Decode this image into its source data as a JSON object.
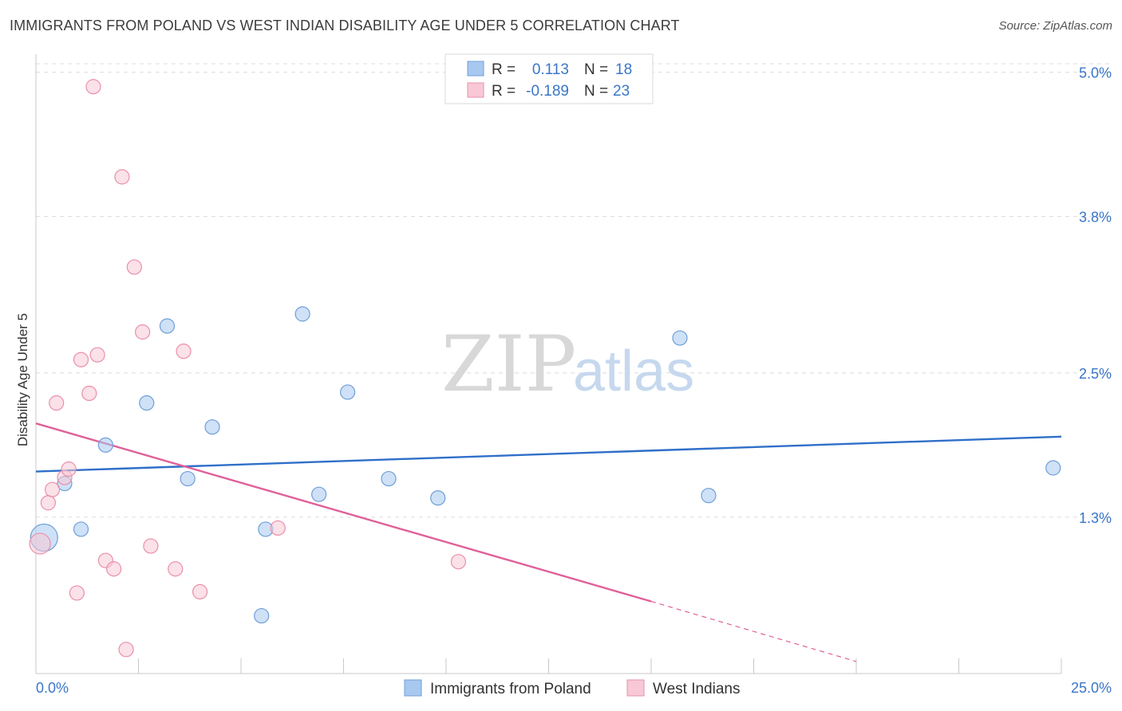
{
  "title": "IMMIGRANTS FROM POLAND VS WEST INDIAN DISABILITY AGE UNDER 5 CORRELATION CHART",
  "source": "Source: ZipAtlas.com",
  "watermark": {
    "zip": "ZIP",
    "atlas": "atlas"
  },
  "chart_data": {
    "type": "scatter",
    "title": "IMMIGRANTS FROM POLAND VS WEST INDIAN DISABILITY AGE UNDER 5 CORRELATION CHART",
    "xlabel": "",
    "ylabel": "Disability Age Under 5",
    "xlim": [
      0,
      25
    ],
    "ylim": [
      0,
      5.15
    ],
    "x_tick_labels": [
      "0.0%",
      "25.0%"
    ],
    "y_ticks": [
      1.3,
      2.5,
      3.8,
      5.0
    ],
    "y_tick_labels": [
      "1.3%",
      "2.5%",
      "3.8%",
      "5.0%"
    ],
    "grid": true,
    "legend": [
      {
        "r_label": "R =",
        "r_value": "0.113",
        "n_label": "N =",
        "n_value": "18"
      },
      {
        "r_label": "R =",
        "r_value": "-0.189",
        "n_label": "N =",
        "n_value": "23"
      }
    ],
    "series": [
      {
        "name": "Immigrants from Poland",
        "color": "#a8c8f0",
        "edge": "#6f9fd8",
        "line_color": "#2f6fc9",
        "trend": [
          [
            0,
            1.68
          ],
          [
            25,
            1.97
          ]
        ],
        "points": [
          {
            "x": 0.2,
            "y": 1.13,
            "s": 17
          },
          {
            "x": 0.7,
            "y": 1.58,
            "s": 9
          },
          {
            "x": 1.1,
            "y": 1.2,
            "s": 9
          },
          {
            "x": 1.7,
            "y": 1.9,
            "s": 9
          },
          {
            "x": 2.7,
            "y": 2.25,
            "s": 9
          },
          {
            "x": 3.2,
            "y": 2.89,
            "s": 9
          },
          {
            "x": 3.7,
            "y": 1.62,
            "s": 9
          },
          {
            "x": 4.3,
            "y": 2.05,
            "s": 9
          },
          {
            "x": 5.5,
            "y": 0.48,
            "s": 9
          },
          {
            "x": 5.6,
            "y": 1.2,
            "s": 9
          },
          {
            "x": 6.5,
            "y": 2.99,
            "s": 9
          },
          {
            "x": 6.9,
            "y": 1.49,
            "s": 9
          },
          {
            "x": 7.6,
            "y": 2.34,
            "s": 9
          },
          {
            "x": 8.6,
            "y": 1.62,
            "s": 9
          },
          {
            "x": 9.8,
            "y": 1.46,
            "s": 9
          },
          {
            "x": 15.7,
            "y": 2.79,
            "s": 9
          },
          {
            "x": 16.4,
            "y": 1.48,
            "s": 9
          },
          {
            "x": 24.8,
            "y": 1.71,
            "s": 9
          }
        ]
      },
      {
        "name": "West Indians",
        "color": "#f8c8d6",
        "edge": "#ea8fac",
        "line_color": "#e0609a",
        "trend": [
          [
            0,
            2.08
          ],
          [
            15,
            0.6
          ]
        ],
        "trend_dashed": [
          [
            15,
            0.6
          ],
          [
            20,
            0.1
          ]
        ],
        "points": [
          {
            "x": 0.1,
            "y": 1.08,
            "s": 13
          },
          {
            "x": 0.3,
            "y": 1.42,
            "s": 9
          },
          {
            "x": 0.4,
            "y": 1.53,
            "s": 9
          },
          {
            "x": 0.5,
            "y": 2.25,
            "s": 9
          },
          {
            "x": 0.7,
            "y": 1.63,
            "s": 9
          },
          {
            "x": 0.8,
            "y": 1.7,
            "s": 9
          },
          {
            "x": 1.0,
            "y": 0.67,
            "s": 9
          },
          {
            "x": 1.1,
            "y": 2.61,
            "s": 9
          },
          {
            "x": 1.3,
            "y": 2.33,
            "s": 9
          },
          {
            "x": 1.4,
            "y": 4.88,
            "s": 9
          },
          {
            "x": 1.5,
            "y": 2.65,
            "s": 9
          },
          {
            "x": 1.7,
            "y": 0.94,
            "s": 9
          },
          {
            "x": 1.9,
            "y": 0.87,
            "s": 9
          },
          {
            "x": 2.1,
            "y": 4.13,
            "s": 9
          },
          {
            "x": 2.2,
            "y": 0.2,
            "s": 9
          },
          {
            "x": 2.4,
            "y": 3.38,
            "s": 9
          },
          {
            "x": 2.6,
            "y": 2.84,
            "s": 9
          },
          {
            "x": 2.8,
            "y": 1.06,
            "s": 9
          },
          {
            "x": 3.4,
            "y": 0.87,
            "s": 9
          },
          {
            "x": 3.6,
            "y": 2.68,
            "s": 9
          },
          {
            "x": 4.0,
            "y": 0.68,
            "s": 9
          },
          {
            "x": 5.9,
            "y": 1.21,
            "s": 9
          },
          {
            "x": 10.3,
            "y": 0.93,
            "s": 9
          }
        ]
      }
    ]
  }
}
